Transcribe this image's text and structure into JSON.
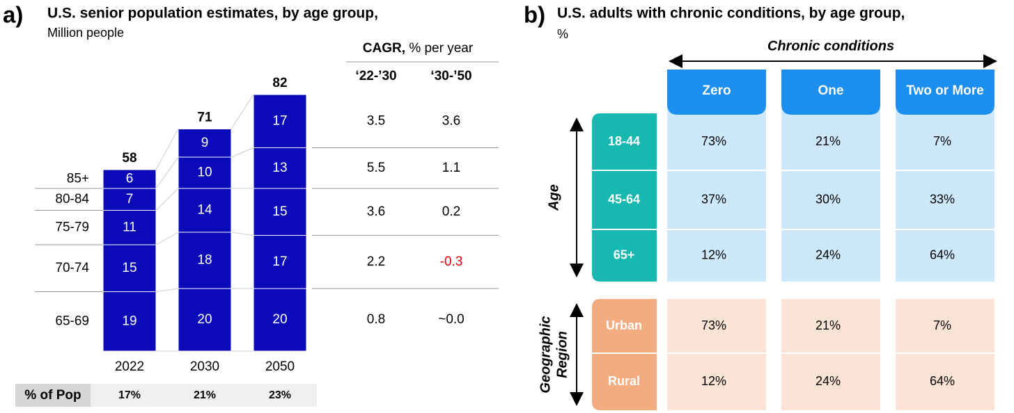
{
  "chart_data": {
    "type": "stacked-bar",
    "panel_label": "a)",
    "title": "U.S. senior population estimates, by age group,",
    "subtitle": "Million people",
    "categories": [
      "2022",
      "2030",
      "2050"
    ],
    "series": [
      {
        "name": "65-69",
        "color": "#0a0ab8",
        "values": [
          19,
          20,
          20
        ]
      },
      {
        "name": "70-74",
        "color": "#0a0ab8",
        "values": [
          15,
          18,
          17
        ]
      },
      {
        "name": "75-79",
        "color": "#0a0ab8",
        "values": [
          11,
          14,
          15
        ]
      },
      {
        "name": "80-84",
        "color": "#0a0ab8",
        "values": [
          7,
          10,
          13
        ]
      },
      {
        "name": "85+",
        "color": "#0a0ab8",
        "values": [
          6,
          9,
          17
        ]
      }
    ],
    "totals": [
      58,
      71,
      82
    ],
    "share": {
      "label": "% of Pop",
      "values": [
        17,
        21,
        23
      ],
      "value_labels": [
        "17%",
        "21%",
        "23%"
      ]
    }
  },
  "cagr_table": {
    "title_bold": "CAGR,",
    "title_rest": "% per year",
    "columns": [
      "‘22-’30",
      "‘30-’50"
    ],
    "negative_color": "#e00000",
    "rows": [
      [
        3.5,
        3.6
      ],
      [
        5.5,
        1.1
      ],
      [
        3.6,
        0.2
      ],
      [
        2.2,
        -0.3
      ],
      [
        0.8,
        "~0.0"
      ]
    ]
  },
  "panel_b": {
    "panel_label": "b)",
    "title": "U.S. adults with chronic conditions, by age group,",
    "subtitle": "%",
    "column_header": "Chronic conditions",
    "columns": [
      "Zero",
      "One",
      "Two or More"
    ],
    "groups": [
      {
        "name_lines": [
          "Age"
        ],
        "rows": [
          {
            "label": "18-44",
            "cells": [
              "73%",
              "21%",
              "7%"
            ]
          },
          {
            "label": "45-64",
            "cells": [
              "37%",
              "30%",
              "33%"
            ]
          },
          {
            "label": "65+",
            "cells": [
              "12%",
              "24%",
              "64%"
            ]
          }
        ]
      },
      {
        "name_lines": [
          "Geographic",
          "Region"
        ],
        "rows": [
          {
            "label": "Urban",
            "cells": [
              "73%",
              "21%",
              "7%"
            ]
          },
          {
            "label": "Rural",
            "cells": [
              "12%",
              "24%",
              "64%"
            ]
          }
        ]
      }
    ]
  }
}
